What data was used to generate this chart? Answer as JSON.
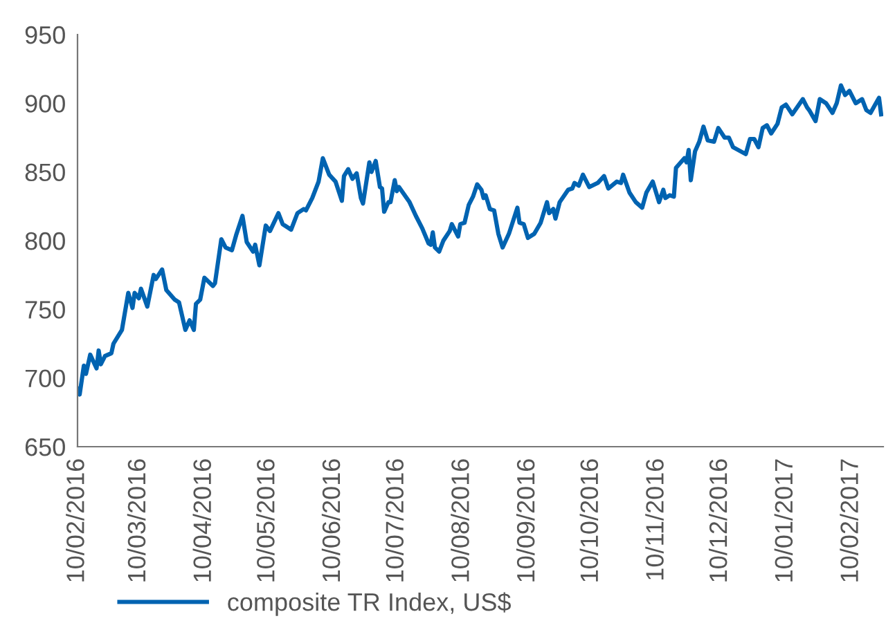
{
  "chart_data": {
    "type": "line",
    "x": [
      "2016-02-10",
      "2016-02-11",
      "2016-02-13",
      "2016-02-14",
      "2016-02-16",
      "2016-02-19",
      "2016-02-20",
      "2016-02-21",
      "2016-02-23",
      "2016-02-26",
      "2016-02-27",
      "2016-03-02",
      "2016-03-05",
      "2016-03-07",
      "2016-03-08",
      "2016-03-10",
      "2016-03-11",
      "2016-03-14",
      "2016-03-17",
      "2016-03-18",
      "2016-03-21",
      "2016-03-23",
      "2016-03-27",
      "2016-03-29",
      "2016-04-01",
      "2016-04-03",
      "2016-04-05",
      "2016-04-06",
      "2016-04-08",
      "2016-04-10",
      "2016-04-14",
      "2016-04-15",
      "2016-04-18",
      "2016-04-20",
      "2016-04-23",
      "2016-04-25",
      "2016-04-28",
      "2016-04-30",
      "2016-05-03",
      "2016-05-04",
      "2016-05-06",
      "2016-05-09",
      "2016-05-11",
      "2016-05-15",
      "2016-05-17",
      "2016-05-21",
      "2016-05-24",
      "2016-05-27",
      "2016-05-28",
      "2016-05-31",
      "2016-06-03",
      "2016-06-05",
      "2016-06-08",
      "2016-06-11",
      "2016-06-14",
      "2016-06-15",
      "2016-06-17",
      "2016-06-19",
      "2016-06-21",
      "2016-06-23",
      "2016-06-24",
      "2016-06-27",
      "2016-06-28",
      "2016-06-30",
      "2016-07-02",
      "2016-07-03",
      "2016-07-04",
      "2016-07-06",
      "2016-07-07",
      "2016-07-09",
      "2016-07-10",
      "2016-07-11",
      "2016-07-16",
      "2016-07-19",
      "2016-07-22",
      "2016-07-25",
      "2016-07-26",
      "2016-07-27",
      "2016-07-28",
      "2016-07-30",
      "2016-08-01",
      "2016-08-04",
      "2016-08-05",
      "2016-08-08",
      "2016-08-09",
      "2016-08-11",
      "2016-08-13",
      "2016-08-15",
      "2016-08-17",
      "2016-08-19",
      "2016-08-20",
      "2016-08-21",
      "2016-08-23",
      "2016-08-25",
      "2016-08-27",
      "2016-08-29",
      "2016-09-01",
      "2016-09-05",
      "2016-09-06",
      "2016-09-08",
      "2016-09-10",
      "2016-09-13",
      "2016-09-16",
      "2016-09-19",
      "2016-09-20",
      "2016-09-22",
      "2016-09-23",
      "2016-09-25",
      "2016-09-29",
      "2016-10-01",
      "2016-10-02",
      "2016-10-04",
      "2016-10-06",
      "2016-10-09",
      "2016-10-13",
      "2016-10-16",
      "2016-10-18",
      "2016-10-22",
      "2016-10-24",
      "2016-10-25",
      "2016-10-28",
      "2016-10-31",
      "2016-11-03",
      "2016-11-05",
      "2016-11-08",
      "2016-11-11",
      "2016-11-13",
      "2016-11-14",
      "2016-11-16",
      "2016-11-18",
      "2016-11-19",
      "2016-11-23",
      "2016-11-24",
      "2016-11-25",
      "2016-11-26",
      "2016-11-28",
      "2016-11-30",
      "2016-12-02",
      "2016-12-04",
      "2016-12-07",
      "2016-12-09",
      "2016-12-12",
      "2016-12-14",
      "2016-12-16",
      "2016-12-22",
      "2016-12-24",
      "2016-12-26",
      "2016-12-28",
      "2016-12-30",
      "2017-01-01",
      "2017-01-03",
      "2017-01-06",
      "2017-01-08",
      "2017-01-10",
      "2017-01-13",
      "2017-01-18",
      "2017-01-20",
      "2017-01-21",
      "2017-01-24",
      "2017-01-26",
      "2017-01-29",
      "2017-02-01",
      "2017-02-03",
      "2017-02-05",
      "2017-02-07",
      "2017-02-09",
      "2017-02-12",
      "2017-02-15",
      "2017-02-17",
      "2017-02-19",
      "2017-02-23",
      "2017-02-24"
    ],
    "series": [
      {
        "name": "composite TR Index, US$",
        "color": "#0063b1",
        "values": [
          692,
          688,
          709,
          703,
          717,
          707,
          720,
          710,
          716,
          718,
          725,
          735,
          762,
          751,
          762,
          758,
          765,
          752,
          775,
          772,
          779,
          764,
          757,
          755,
          735,
          742,
          735,
          754,
          757,
          773,
          767,
          769,
          801,
          795,
          793,
          804,
          818,
          799,
          792,
          797,
          782,
          811,
          807,
          820,
          812,
          808,
          820,
          823,
          822,
          831,
          843,
          860,
          848,
          843,
          829,
          847,
          852,
          845,
          849,
          831,
          827,
          857,
          850,
          858,
          839,
          838,
          821,
          828,
          828,
          844,
          836,
          839,
          828,
          818,
          809,
          798,
          797,
          806,
          795,
          792,
          800,
          807,
          812,
          803,
          812,
          813,
          826,
          832,
          841,
          837,
          831,
          833,
          823,
          822,
          805,
          795,
          805,
          824,
          813,
          812,
          802,
          805,
          813,
          828,
          820,
          823,
          816,
          828,
          837,
          838,
          842,
          840,
          848,
          839,
          842,
          847,
          838,
          843,
          842,
          848,
          835,
          828,
          824,
          835,
          843,
          828,
          837,
          831,
          833,
          832,
          853,
          860,
          857,
          866,
          844,
          865,
          872,
          883,
          873,
          872,
          882,
          875,
          875,
          868,
          863,
          874,
          874,
          868,
          882,
          884,
          878,
          885,
          897,
          899,
          892,
          903,
          897,
          895,
          887,
          903,
          900,
          893,
          900,
          913,
          906,
          909,
          900,
          903,
          895,
          893,
          904,
          892
        ]
      }
    ],
    "xlim": [
      "2016-02-10",
      "2017-02-25"
    ],
    "xticks": [
      {
        "value": "2016-02-10",
        "label": "10/02/2016"
      },
      {
        "value": "2016-03-10",
        "label": "10/03/2016"
      },
      {
        "value": "2016-04-10",
        "label": "10/04/2016"
      },
      {
        "value": "2016-05-10",
        "label": "10/05/2016"
      },
      {
        "value": "2016-06-10",
        "label": "10/06/2016"
      },
      {
        "value": "2016-07-10",
        "label": "10/07/2016"
      },
      {
        "value": "2016-08-10",
        "label": "10/08/2016"
      },
      {
        "value": "2016-09-10",
        "label": "10/09/2016"
      },
      {
        "value": "2016-10-10",
        "label": "10/10/2016"
      },
      {
        "value": "2016-11-10",
        "label": "10/11/2016"
      },
      {
        "value": "2016-12-10",
        "label": "10/12/2016"
      },
      {
        "value": "2017-01-10",
        "label": "10/01/2017"
      },
      {
        "value": "2017-02-10",
        "label": "10/02/2017"
      }
    ],
    "ylim": [
      650,
      950
    ],
    "yticks": [
      650,
      700,
      750,
      800,
      850,
      900,
      950
    ],
    "legend": "bottom",
    "line_style": "solid"
  }
}
